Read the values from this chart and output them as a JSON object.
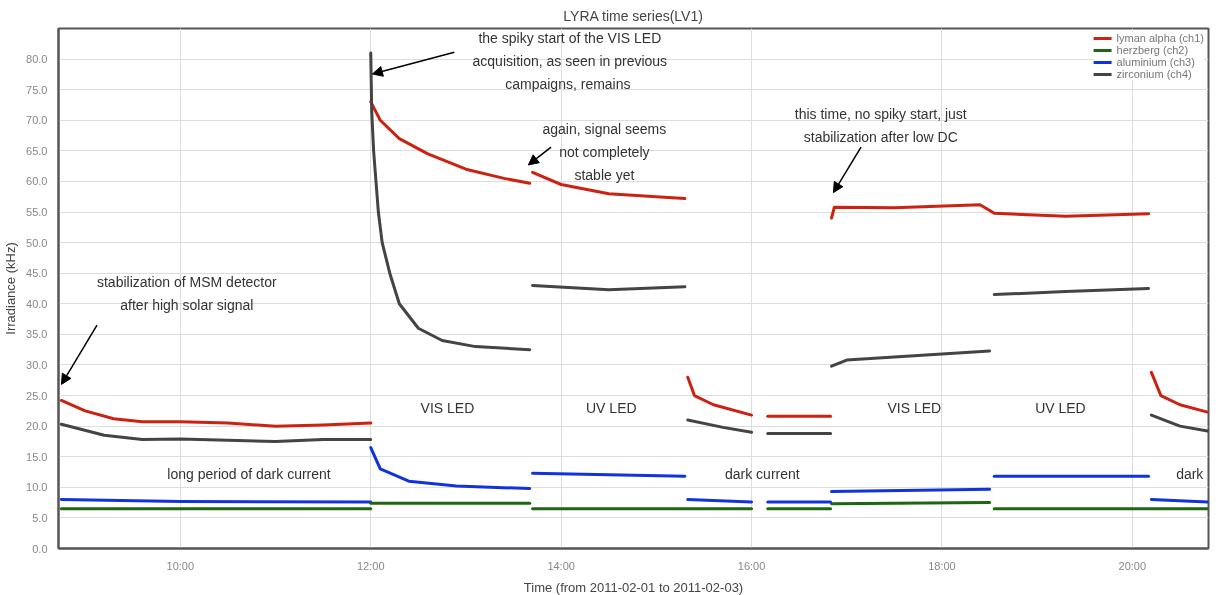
{
  "chart_data": {
    "type": "line",
    "title": "LYRA time series(LV1)",
    "xlabel": "Time (from 2011-02-01 to 2011-02-03)",
    "ylabel": "Irradiance (kHz)",
    "xlim": [
      8.72,
      20.8
    ],
    "ylim": [
      0,
      85
    ],
    "xticks": [
      {
        "value": 10,
        "label": "10:00"
      },
      {
        "value": 12,
        "label": "12:00"
      },
      {
        "value": 14,
        "label": "14:00"
      },
      {
        "value": 16,
        "label": "16:00"
      },
      {
        "value": 18,
        "label": "18:00"
      },
      {
        "value": 20,
        "label": "20:00"
      }
    ],
    "yticks": [
      {
        "value": 0,
        "label": "0.0"
      },
      {
        "value": 5,
        "label": "5.0"
      },
      {
        "value": 10,
        "label": "10.0"
      },
      {
        "value": 15,
        "label": "15.0"
      },
      {
        "value": 20,
        "label": "20.0"
      },
      {
        "value": 25,
        "label": "25.0"
      },
      {
        "value": 30,
        "label": "30.0"
      },
      {
        "value": 35,
        "label": "35.0"
      },
      {
        "value": 40,
        "label": "40.0"
      },
      {
        "value": 45,
        "label": "45.0"
      },
      {
        "value": 50,
        "label": "50.0"
      },
      {
        "value": 55,
        "label": "55.0"
      },
      {
        "value": 60,
        "label": "60.0"
      },
      {
        "value": 65,
        "label": "65.0"
      },
      {
        "value": 70,
        "label": "70.0"
      },
      {
        "value": 75,
        "label": "75.0"
      },
      {
        "value": 80,
        "label": "80.0"
      }
    ],
    "grid": true,
    "legend": "top right",
    "line_style": "solid",
    "series": [
      {
        "name": "lyman alpha (ch1)",
        "color": "#cc2211",
        "x": [
          8.75,
          9.0,
          9.3,
          9.6,
          10.0,
          10.5,
          11.0,
          11.5,
          12.0
        ],
        "values": [
          24.2,
          22.5,
          21.2,
          20.7,
          20.7,
          20.5,
          20.0,
          20.2,
          20.5
        ]
      },
      {
        "name": "herzberg (ch2)",
        "color": "#1e6611",
        "x": [
          8.75,
          10.0,
          12.0
        ],
        "values": [
          6.5,
          6.5,
          6.5
        ]
      },
      {
        "name": "aluminium (ch3)",
        "color": "#1133dd",
        "x": [
          8.75,
          10.0,
          12.0
        ],
        "values": [
          8.0,
          7.7,
          7.6
        ]
      },
      {
        "name": "zirconium (ch4)",
        "color": "#444444",
        "x": [
          8.75,
          9.2,
          9.6,
          10.0,
          11.0,
          11.5,
          12.0
        ],
        "values": [
          20.3,
          18.5,
          17.8,
          17.9,
          17.5,
          17.8,
          17.8
        ]
      },
      {
        "color": "#cc2211",
        "x": [
          12.0,
          12.1,
          12.3,
          12.6,
          13.0,
          13.4,
          13.67
        ],
        "values": [
          73,
          70,
          67,
          64.5,
          62,
          60.5,
          59.7
        ]
      },
      {
        "color": "#cc2211",
        "x": [
          13.7,
          14.0,
          14.5,
          15.0,
          15.3
        ],
        "values": [
          61.5,
          59.5,
          58,
          57.5,
          57.2
        ]
      },
      {
        "color": "#cc2211",
        "x": [
          15.33,
          15.4,
          15.6,
          16.0
        ],
        "values": [
          28,
          25,
          23.5,
          21.8
        ]
      },
      {
        "color": "#cc2211",
        "x": [
          16.17,
          16.5,
          16.83
        ],
        "values": [
          21.6,
          21.6,
          21.6
        ]
      },
      {
        "color": "#cc2211",
        "x": [
          16.84,
          16.87,
          17.5,
          18.4,
          18.55,
          19.3,
          20.17
        ],
        "values": [
          54,
          55.8,
          55.7,
          56.2,
          54.8,
          54.3,
          54.7
        ]
      },
      {
        "color": "#cc2211",
        "x": [
          20.2,
          20.3,
          20.5,
          20.79
        ],
        "values": [
          28.8,
          25,
          23.5,
          22.3
        ]
      },
      {
        "color": "#1e6611",
        "x": [
          12.0,
          13.67
        ],
        "values": [
          7.4,
          7.4
        ]
      },
      {
        "color": "#1e6611",
        "x": [
          13.7,
          15.0,
          16.0
        ],
        "values": [
          6.5,
          6.5,
          6.5
        ]
      },
      {
        "color": "#1e6611",
        "x": [
          16.17,
          16.83
        ],
        "values": [
          6.5,
          6.5
        ]
      },
      {
        "color": "#1e6611",
        "x": [
          16.84,
          18.5
        ],
        "values": [
          7.3,
          7.5
        ]
      },
      {
        "color": "#1e6611",
        "x": [
          18.55,
          20.17,
          20.2,
          20.79
        ],
        "values": [
          6.5,
          6.5,
          6.5,
          6.5
        ]
      },
      {
        "color": "#1133dd",
        "x": [
          12.0,
          12.1,
          12.4,
          12.9,
          13.67
        ],
        "values": [
          16.5,
          13,
          11,
          10.2,
          9.8
        ]
      },
      {
        "color": "#1133dd",
        "x": [
          13.7,
          15.3
        ],
        "values": [
          12.3,
          11.8
        ]
      },
      {
        "color": "#1133dd",
        "x": [
          15.33,
          16.0
        ],
        "values": [
          8.0,
          7.6
        ]
      },
      {
        "color": "#1133dd",
        "x": [
          16.17,
          16.83
        ],
        "values": [
          7.6,
          7.6
        ]
      },
      {
        "color": "#1133dd",
        "x": [
          16.84,
          18.5
        ],
        "values": [
          9.3,
          9.7
        ]
      },
      {
        "color": "#1133dd",
        "x": [
          18.55,
          20.17
        ],
        "values": [
          11.8,
          11.8
        ]
      },
      {
        "color": "#1133dd",
        "x": [
          20.2,
          20.79
        ],
        "values": [
          8.0,
          7.6
        ]
      },
      {
        "color": "#444444",
        "x": [
          12.0,
          12.01,
          12.03,
          12.05,
          12.08,
          12.12,
          12.2,
          12.3,
          12.5,
          12.75,
          13.1,
          13.67
        ],
        "values": [
          81,
          71.5,
          65,
          61,
          55,
          50,
          45,
          40,
          36,
          34,
          33,
          32.5
        ]
      },
      {
        "color": "#444444",
        "x": [
          13.7,
          14.5,
          15.3
        ],
        "values": [
          43,
          42.3,
          42.8
        ]
      },
      {
        "color": "#444444",
        "x": [
          15.33,
          15.7,
          16.0
        ],
        "values": [
          21,
          19.8,
          19
        ]
      },
      {
        "color": "#444444",
        "x": [
          16.17,
          16.83
        ],
        "values": [
          18.8,
          18.8
        ]
      },
      {
        "color": "#444444",
        "x": [
          16.84,
          17.0,
          17.5,
          18.5
        ],
        "values": [
          29.8,
          30.8,
          31.3,
          32.3
        ]
      },
      {
        "color": "#444444",
        "x": [
          18.55,
          19.3,
          20.17
        ],
        "values": [
          41.5,
          42,
          42.5
        ]
      },
      {
        "color": "#444444",
        "x": [
          20.2,
          20.5,
          20.79
        ],
        "values": [
          21.8,
          20,
          19.2
        ]
      }
    ],
    "annotations": [
      "stabilization of MSM detector\nafter high solar signal",
      "the spiky start of the VIS LED\nacquisition, as seen in previous\ncampaigns,  remains",
      "again, signal seems\nnot completely\nstable yet",
      "this time, no spiky start, just\nstabilization after low DC",
      "VIS LED",
      "UV LED",
      "long period of dark current",
      "dark current",
      "VIS LED",
      "UV LED",
      "dark"
    ]
  }
}
